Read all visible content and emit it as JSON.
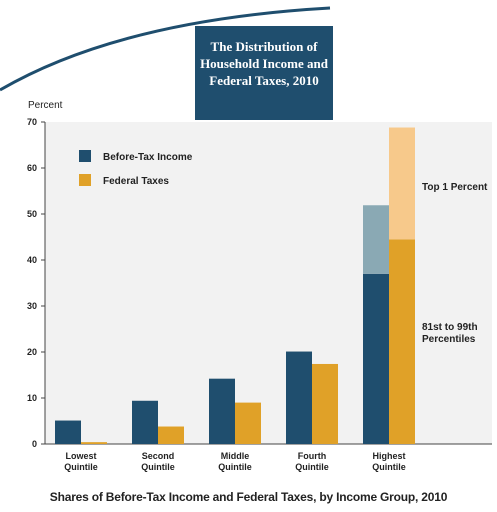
{
  "title_lines": [
    "The Distribution of",
    "Household Income and",
    "Federal Taxes, 2010"
  ],
  "caption": "Shares of Before-Tax Income and Federal Taxes, by Income Group, 2010",
  "colors": {
    "title_bg": "#1f4e6e",
    "income": "#1f4e6e",
    "income_top1": "#8aa9b4",
    "taxes": "#e0a128",
    "taxes_top1": "#f7c98b",
    "panel_bg": "#f2f2f2"
  },
  "chart_data": {
    "type": "bar",
    "ylabel": "Percent",
    "ylim": [
      0,
      70
    ],
    "yticks": [
      0,
      10,
      20,
      30,
      40,
      50,
      60,
      70
    ],
    "categories": [
      [
        "Lowest",
        "Quintile"
      ],
      [
        "Second",
        "Quintile"
      ],
      [
        "Middle",
        "Quintile"
      ],
      [
        "Fourth",
        "Quintile"
      ],
      [
        "Highest",
        "Quintile"
      ]
    ],
    "series": [
      {
        "name": "Before-Tax Income",
        "values": [
          5.1,
          9.4,
          14.2,
          20.1,
          51.9
        ]
      },
      {
        "name": "Federal Taxes",
        "values": [
          0.4,
          3.8,
          9.0,
          17.4,
          68.8
        ]
      }
    ],
    "highest_quintile_breakdown": {
      "before_tax_income": {
        "81st to 99th Percentiles": 37.0,
        "Top 1 Percent": 14.9
      },
      "federal_taxes": {
        "81st to 99th Percentiles": 44.5,
        "Top 1 Percent": 24.3
      }
    },
    "annotations": [
      [
        "Top 1 Percent"
      ],
      [
        "81st to 99th",
        "Percentiles"
      ]
    ],
    "legend_position": "top-left",
    "grid": false
  }
}
